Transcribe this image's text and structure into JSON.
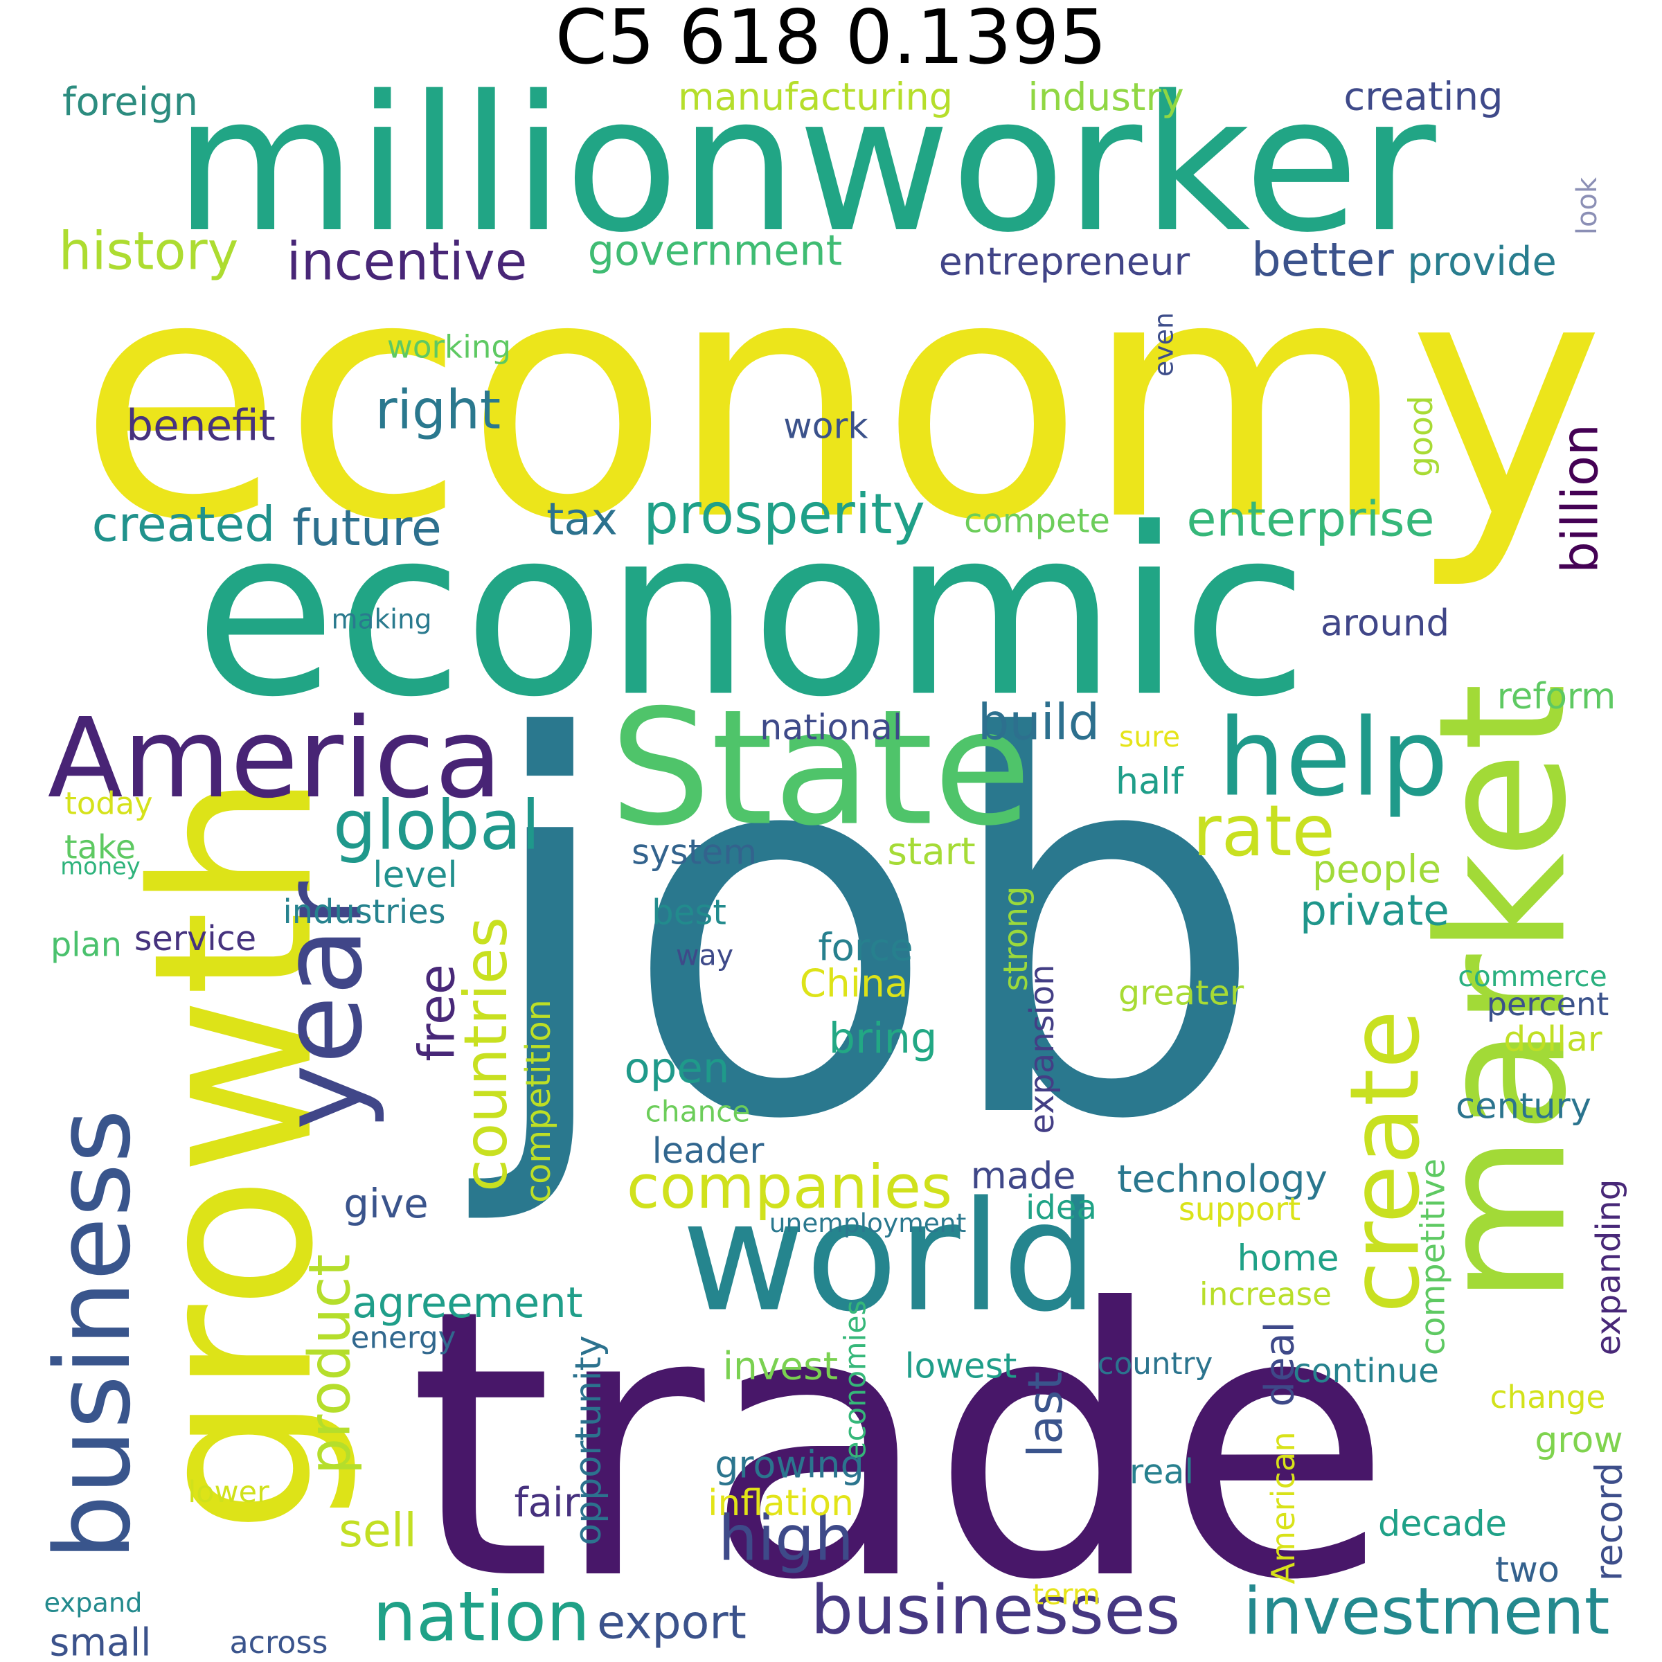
{
  "title": "C5 618 0.1395",
  "words": [
    {
      "text": "job",
      "color": "#2a788e"
    },
    {
      "text": "economy",
      "color": "#ece51b"
    },
    {
      "text": "trade",
      "color": "#481769"
    },
    {
      "text": "millionworker",
      "color": "#21a585"
    },
    {
      "text": "economic",
      "color": "#21a585"
    },
    {
      "text": "growth",
      "color": "#dde318"
    },
    {
      "text": "market",
      "color": "#a2da37"
    },
    {
      "text": "world",
      "color": "#25858e"
    },
    {
      "text": "year",
      "color": "#404688"
    },
    {
      "text": "State",
      "color": "#4fc46a"
    },
    {
      "text": "America",
      "color": "#482475"
    },
    {
      "text": "business",
      "color": "#39558c"
    },
    {
      "text": "create",
      "color": "#c8e020"
    },
    {
      "text": "help",
      "color": "#1f9a8a"
    },
    {
      "text": "businesses",
      "color": "#453781"
    },
    {
      "text": "investment",
      "color": "#23898e"
    },
    {
      "text": "nation",
      "color": "#1fa187"
    },
    {
      "text": "companies",
      "color": "#d0e11c"
    },
    {
      "text": "global",
      "color": "#1f988b"
    },
    {
      "text": "countries",
      "color": "#c8e020"
    },
    {
      "text": "free",
      "color": "#482878"
    },
    {
      "text": "product",
      "color": "#b5de2b"
    },
    {
      "text": "rate",
      "color": "#c8e020"
    },
    {
      "text": "high",
      "color": "#3e4a89"
    },
    {
      "text": "prosperity",
      "color": "#1fa088"
    },
    {
      "text": "agreement",
      "color": "#1f9e89"
    },
    {
      "text": "export",
      "color": "#3b528b"
    },
    {
      "text": "opportunity",
      "color": "#2c728e"
    },
    {
      "text": "enterprise",
      "color": "#35b779"
    },
    {
      "text": "incentive",
      "color": "#482677"
    },
    {
      "text": "government",
      "color": "#3fbc73"
    },
    {
      "text": "history",
      "color": "#addc30"
    },
    {
      "text": "created",
      "color": "#20928c"
    },
    {
      "text": "future",
      "color": "#2d708e"
    },
    {
      "text": "right",
      "color": "#2a788e"
    },
    {
      "text": "tax",
      "color": "#2c728e"
    },
    {
      "text": "better",
      "color": "#3b528b"
    },
    {
      "text": "entrepreneur",
      "color": "#414487"
    },
    {
      "text": "provide",
      "color": "#287d8e"
    },
    {
      "text": "manufacturing",
      "color": "#b5de2b"
    },
    {
      "text": "industry",
      "color": "#90d743"
    },
    {
      "text": "creating",
      "color": "#3e4989"
    },
    {
      "text": "foreign",
      "color": "#2c8c7f"
    },
    {
      "text": "benefit",
      "color": "#46327e"
    },
    {
      "text": "working",
      "color": "#5ec962"
    },
    {
      "text": "work",
      "color": "#3b528b"
    },
    {
      "text": "compete",
      "color": "#6ccd5a"
    },
    {
      "text": "billion",
      "color": "#440154"
    },
    {
      "text": "good",
      "color": "#a8db34"
    },
    {
      "text": "even",
      "color": "#3d4d8a"
    },
    {
      "text": "look",
      "color": "#8b8fb5"
    },
    {
      "text": "around",
      "color": "#404688"
    },
    {
      "text": "making",
      "color": "#2a7a8e"
    },
    {
      "text": "build",
      "color": "#2d708e"
    },
    {
      "text": "reform",
      "color": "#5ec962"
    },
    {
      "text": "national",
      "color": "#3e4a89"
    },
    {
      "text": "sure",
      "color": "#e5e419"
    },
    {
      "text": "half",
      "color": "#1f9e89"
    },
    {
      "text": "today",
      "color": "#d5e21a"
    },
    {
      "text": "take",
      "color": "#5ec962"
    },
    {
      "text": "money",
      "color": "#2eb37c"
    },
    {
      "text": "level",
      "color": "#21908d"
    },
    {
      "text": "system",
      "color": "#33638d"
    },
    {
      "text": "start",
      "color": "#a5db36"
    },
    {
      "text": "people",
      "color": "#a0da39"
    },
    {
      "text": "private",
      "color": "#1f968b"
    },
    {
      "text": "industries",
      "color": "#26828e"
    },
    {
      "text": "plan",
      "color": "#4ac16d"
    },
    {
      "text": "service",
      "color": "#46337e"
    },
    {
      "text": "best",
      "color": "#228b8d"
    },
    {
      "text": "way",
      "color": "#3e4a89"
    },
    {
      "text": "force",
      "color": "#27808e"
    },
    {
      "text": "China",
      "color": "#dde318"
    },
    {
      "text": "strong",
      "color": "#9bd93c"
    },
    {
      "text": "expansion",
      "color": "#433e85"
    },
    {
      "text": "greater",
      "color": "#a8db34"
    },
    {
      "text": "commerce",
      "color": "#2ab07f"
    },
    {
      "text": "percent",
      "color": "#3b528b"
    },
    {
      "text": "dollar",
      "color": "#c0df25"
    },
    {
      "text": "bring",
      "color": "#22a884"
    },
    {
      "text": "competition",
      "color": "#bddf26"
    },
    {
      "text": "open",
      "color": "#1f9a8a"
    },
    {
      "text": "chance",
      "color": "#6ccd5a"
    },
    {
      "text": "century",
      "color": "#2b748e"
    },
    {
      "text": "leader",
      "color": "#31668e"
    },
    {
      "text": "made",
      "color": "#3f4788"
    },
    {
      "text": "technology",
      "color": "#2a778e"
    },
    {
      "text": "give",
      "color": "#3a548c"
    },
    {
      "text": "unemployment",
      "color": "#2a788e"
    },
    {
      "text": "idea",
      "color": "#20a386"
    },
    {
      "text": "support",
      "color": "#dae319"
    },
    {
      "text": "competitive",
      "color": "#5ec962"
    },
    {
      "text": "expanding",
      "color": "#482878"
    },
    {
      "text": "home",
      "color": "#1fa187"
    },
    {
      "text": "increase",
      "color": "#b8de29"
    },
    {
      "text": "energy",
      "color": "#31688e"
    },
    {
      "text": "invest",
      "color": "#7ad151"
    },
    {
      "text": "economies",
      "color": "#35b779"
    },
    {
      "text": "lowest",
      "color": "#1f9e89"
    },
    {
      "text": "country",
      "color": "#2b748e"
    },
    {
      "text": "deal",
      "color": "#3e4989"
    },
    {
      "text": "continue",
      "color": "#26828e"
    },
    {
      "text": "change",
      "color": "#d2e21b"
    },
    {
      "text": "last",
      "color": "#3a548c"
    },
    {
      "text": "grow",
      "color": "#7fd34e"
    },
    {
      "text": "growing",
      "color": "#2b758e"
    },
    {
      "text": "real",
      "color": "#27808e"
    },
    {
      "text": "record",
      "color": "#3d4e8a"
    },
    {
      "text": "lower",
      "color": "#d0e11c"
    },
    {
      "text": "fair",
      "color": "#46317e"
    },
    {
      "text": "inflation",
      "color": "#e2e418"
    },
    {
      "text": "American",
      "color": "#d8e219"
    },
    {
      "text": "decade",
      "color": "#1fa187"
    },
    {
      "text": "sell",
      "color": "#c2df23"
    },
    {
      "text": "two",
      "color": "#34618d"
    },
    {
      "text": "expand",
      "color": "#238a8d"
    },
    {
      "text": "term",
      "color": "#e7e419"
    },
    {
      "text": "small",
      "color": "#3b528b"
    },
    {
      "text": "across",
      "color": "#3a548c"
    }
  ]
}
